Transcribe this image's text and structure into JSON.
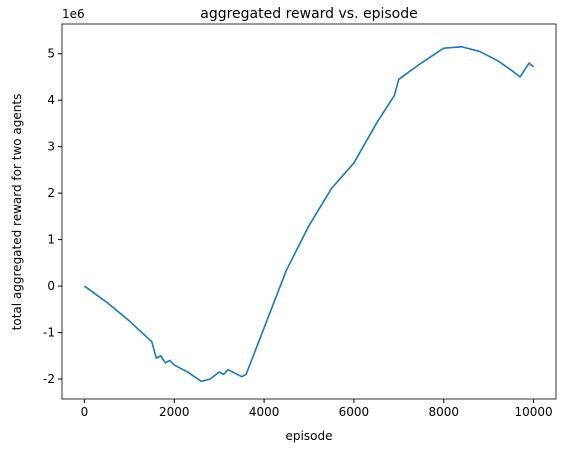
{
  "chart_data": {
    "type": "line",
    "title": "aggregated reward vs. episode",
    "xlabel": "episode",
    "ylabel": "total aggregated reward for two agents",
    "y_offset_label": "1e6",
    "x": [
      0,
      500,
      1000,
      1500,
      1600,
      1700,
      1800,
      1900,
      2000,
      2300,
      2600,
      2800,
      3000,
      3100,
      3200,
      3500,
      3600,
      4000,
      4500,
      5000,
      5500,
      6000,
      6500,
      6900,
      7000,
      7500,
      8000,
      8400,
      8800,
      9200,
      9500,
      9700,
      9900,
      10000
    ],
    "series": [
      {
        "name": "aggregated reward",
        "color": "#1f77b4",
        "values": [
          0,
          -0.35,
          -0.75,
          -1.2,
          -1.55,
          -1.5,
          -1.65,
          -1.6,
          -1.7,
          -1.85,
          -2.05,
          -2.0,
          -1.85,
          -1.9,
          -1.8,
          -1.95,
          -1.9,
          -0.9,
          0.35,
          1.3,
          2.1,
          2.65,
          3.5,
          4.1,
          4.45,
          4.8,
          5.12,
          5.15,
          5.05,
          4.85,
          4.65,
          4.5,
          4.8,
          4.72
        ]
      }
    ],
    "xlim": [
      -500,
      10500
    ],
    "ylim": [
      -2.43,
      5.64
    ],
    "xticks": [
      0,
      2000,
      4000,
      6000,
      8000,
      10000
    ],
    "yticks": [
      -2,
      -1,
      0,
      1,
      2,
      3,
      4,
      5
    ],
    "grid": false
  }
}
